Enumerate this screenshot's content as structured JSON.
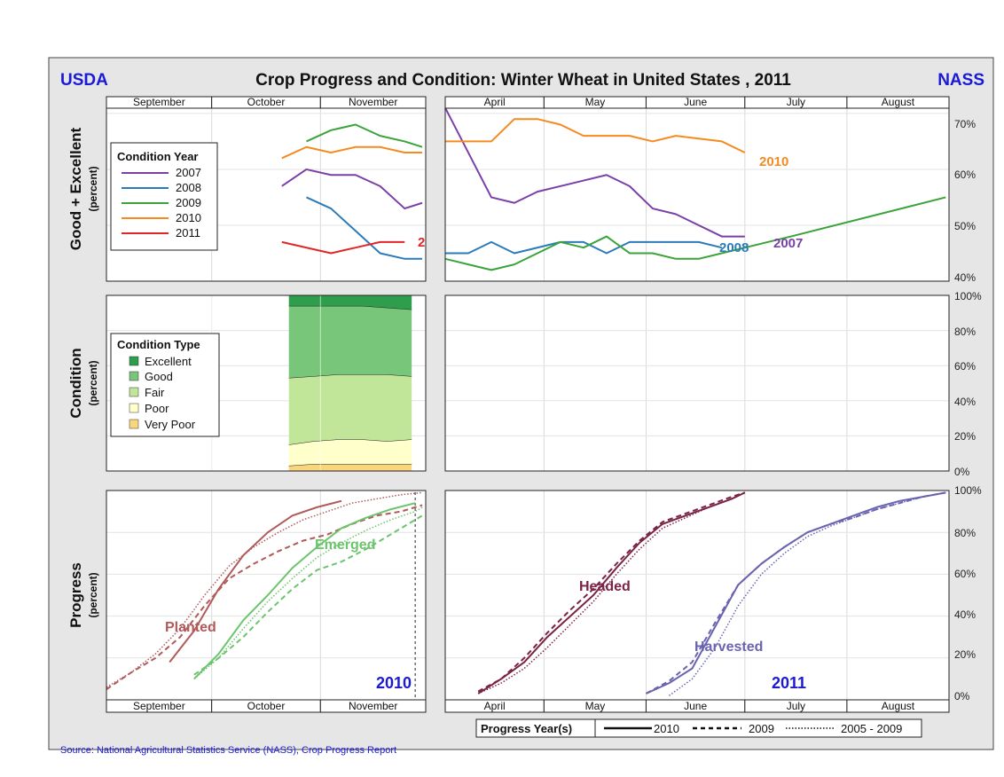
{
  "header": {
    "left": "USDA",
    "title": "Crop Progress and Condition: Winter Wheat in United States , 2011",
    "right": "NASS"
  },
  "colors": {
    "background": "#e6e6e6",
    "agency_blue": "#1a1ad6",
    "y2007": "#7b3fa8",
    "y2008": "#2b7bb9",
    "y2009": "#3aa33a",
    "y2010": "#f58a1f",
    "y2011": "#e02626",
    "excellent": "#2e9e4d",
    "good": "#78c679",
    "fair": "#c2e699",
    "poor": "#ffffcc",
    "very_poor": "#f9d67c",
    "planted": "#b05a5a",
    "emerged": "#6cc46c",
    "headed": "#7b2346",
    "harvested": "#6a64b0"
  },
  "months": {
    "fall": [
      "September",
      "October",
      "November"
    ],
    "spring": [
      "April",
      "May",
      "June",
      "July",
      "August"
    ]
  },
  "row_labels": {
    "row1": {
      "main": "Good + Excellent",
      "sub": "(percent)"
    },
    "row2": {
      "main": "Condition",
      "sub": "(percent)"
    },
    "row3": {
      "main": "Progress",
      "sub": "(percent)"
    }
  },
  "y_ticks": {
    "ge": [
      "70%",
      "60%",
      "50%",
      "40%"
    ],
    "pct": [
      "100%",
      "80%",
      "60%",
      "40%",
      "20%",
      "0%"
    ]
  },
  "legend_condition_year": {
    "title": "Condition Year",
    "items": [
      "2007",
      "2008",
      "2009",
      "2010",
      "2011"
    ]
  },
  "legend_condition_type": {
    "title": "Condition Type",
    "items": [
      "Excellent",
      "Good",
      "Fair",
      "Poor",
      "Very Poor"
    ]
  },
  "legend_progress_year": {
    "title": "Progress Year(s)",
    "items": [
      "2010",
      "2009",
      "2005 - 2009"
    ]
  },
  "labels": {
    "ge_right_2010": "2010",
    "ge_right_2008": "2008",
    "ge_right_2007": "2007",
    "ge_left_2011": "2",
    "planted": "Planted",
    "emerged": "Emerged",
    "headed": "Headed",
    "harvested": "Harvested",
    "year_left": "2010",
    "year_right": "2011"
  },
  "footer": {
    "source": "Source: National Agricultural Statistics Service (NASS), Crop Progress Report"
  },
  "chart_data": [
    {
      "type": "line",
      "panel": "Good + Excellent, fall",
      "ylabel": "Good + Excellent (percent)",
      "ylim": [
        40,
        73
      ],
      "x_range": [
        "Sep 1",
        "Nov 30"
      ],
      "series": [
        {
          "name": "2007",
          "x": [
            "Oct 21",
            "Oct 28",
            "Nov 4",
            "Nov 11",
            "Nov 18",
            "Nov 25",
            "Nov 30"
          ],
          "values": [
            57,
            60,
            59,
            59,
            57,
            53,
            54
          ]
        },
        {
          "name": "2008",
          "x": [
            "Oct 28",
            "Nov 4",
            "Nov 11",
            "Nov 18",
            "Nov 25",
            "Nov 30"
          ],
          "values": [
            55,
            53,
            49,
            45,
            44,
            44
          ]
        },
        {
          "name": "2009",
          "x": [
            "Oct 28",
            "Nov 4",
            "Nov 11",
            "Nov 18",
            "Nov 25",
            "Nov 30"
          ],
          "values": [
            65,
            67,
            68,
            66,
            65,
            64
          ]
        },
        {
          "name": "2010",
          "x": [
            "Oct 21",
            "Oct 28",
            "Nov 4",
            "Nov 11",
            "Nov 18",
            "Nov 25",
            "Nov 30"
          ],
          "values": [
            62,
            64,
            63,
            64,
            64,
            63,
            63
          ]
        },
        {
          "name": "2011",
          "x": [
            "Oct 21",
            "Nov 4",
            "Nov 11",
            "Nov 18",
            "Nov 25"
          ],
          "values": [
            47,
            45,
            46,
            47,
            47
          ]
        }
      ]
    },
    {
      "type": "line",
      "panel": "Good + Excellent, spring",
      "ylim": [
        40,
        73
      ],
      "x_range": [
        "Apr 1",
        "Aug 31"
      ],
      "series": [
        {
          "name": "2007",
          "x": [
            "Apr 1",
            "Apr 15",
            "Apr 22",
            "Apr 29",
            "May 13",
            "May 20",
            "May 27",
            "Jun 3",
            "Jun 10",
            "Jun 24",
            "Jul 1"
          ],
          "values": [
            71,
            55,
            54,
            56,
            58,
            59,
            57,
            53,
            52,
            48,
            48
          ]
        },
        {
          "name": "2008",
          "x": [
            "Apr 1",
            "Apr 8",
            "Apr 15",
            "Apr 22",
            "May 6",
            "May 13",
            "May 20",
            "May 27",
            "Jun 3",
            "Jun 10",
            "Jun 17",
            "Jun 24"
          ],
          "values": [
            45,
            45,
            47,
            45,
            47,
            47,
            45,
            47,
            47,
            47,
            47,
            46
          ]
        },
        {
          "name": "2009",
          "x": [
            "Apr 1",
            "Apr 8",
            "Apr 15",
            "Apr 22",
            "Apr 29",
            "May 6",
            "May 13",
            "May 20",
            "May 27",
            "Jun 3",
            "Jun 10",
            "Jun 17",
            "Jun 24",
            "Jul 1",
            "Jul 15",
            "Aug 31"
          ],
          "values": [
            44,
            43,
            42,
            43,
            45,
            47,
            46,
            48,
            45,
            45,
            44,
            44,
            45,
            46,
            48,
            55
          ]
        },
        {
          "name": "2010",
          "x": [
            "Apr 1",
            "Apr 8",
            "Apr 15",
            "Apr 22",
            "Apr 29",
            "May 6",
            "May 13",
            "May 20",
            "May 27",
            "Jun 3",
            "Jun 10",
            "Jun 17",
            "Jun 24",
            "Jul 1"
          ],
          "values": [
            65,
            65,
            65,
            69,
            69,
            68,
            66,
            66,
            66,
            65,
            66,
            65.5,
            65,
            63
          ]
        }
      ]
    },
    {
      "type": "area",
      "panel": "Condition, fall",
      "ylabel": "Condition (percent)",
      "ylim": [
        0,
        100
      ],
      "x": [
        "Oct 23",
        "Oct 30",
        "Nov 6",
        "Nov 13",
        "Nov 20",
        "Nov 27"
      ],
      "series": [
        {
          "name": "Very Poor",
          "values": [
            3,
            4,
            4,
            4,
            4,
            4
          ]
        },
        {
          "name": "Poor",
          "values": [
            12,
            13,
            14,
            14,
            13,
            14
          ]
        },
        {
          "name": "Fair",
          "values": [
            38,
            37,
            37,
            37,
            38,
            36
          ]
        },
        {
          "name": "Good",
          "values": [
            41,
            40,
            39,
            39,
            38,
            38
          ]
        },
        {
          "name": "Excellent",
          "values": [
            6,
            6,
            6,
            6,
            7,
            8
          ]
        }
      ]
    },
    {
      "type": "line",
      "panel": "Progress, fall 2010",
      "ylabel": "Progress (percent)",
      "ylim": [
        0,
        100
      ],
      "series": [
        {
          "name": "Planted 2010",
          "x": [
            "Sep 19",
            "Sep 26",
            "Oct 3",
            "Oct 10",
            "Oct 17",
            "Oct 24",
            "Oct 31",
            "Nov 7"
          ],
          "values": [
            18,
            33,
            53,
            69,
            80,
            88,
            92,
            95
          ]
        },
        {
          "name": "Planted 2009",
          "x": [
            "Sep 1",
            "Sep 8",
            "Sep 15",
            "Sep 22",
            "Sep 29",
            "Oct 6",
            "Oct 13",
            "Oct 20",
            "Oct 27",
            "Nov 3",
            "Nov 10",
            "Nov 17",
            "Nov 24",
            "Nov 30"
          ],
          "values": [
            5,
            13,
            20,
            30,
            45,
            58,
            65,
            71,
            76,
            79,
            84,
            88,
            90,
            93
          ]
        },
        {
          "name": "Planted 2005 - 2009",
          "x": [
            "Sep 1",
            "Sep 8",
            "Sep 15",
            "Sep 22",
            "Sep 29",
            "Oct 6",
            "Oct 13",
            "Oct 20",
            "Oct 27",
            "Nov 3",
            "Nov 10",
            "Nov 17",
            "Nov 24",
            "Nov 30"
          ],
          "values": [
            6,
            13,
            22,
            34,
            50,
            64,
            73,
            80,
            86,
            90,
            94,
            96,
            98,
            99
          ]
        },
        {
          "name": "Emerged 2010",
          "x": [
            "Sep 26",
            "Oct 3",
            "Oct 10",
            "Oct 17",
            "Oct 24",
            "Oct 31",
            "Nov 7",
            "Nov 14",
            "Nov 21",
            "Nov 28"
          ],
          "values": [
            10,
            22,
            38,
            50,
            63,
            73,
            82,
            87,
            91,
            94
          ]
        },
        {
          "name": "Emerged 2009",
          "x": [
            "Sep 26",
            "Oct 3",
            "Oct 10",
            "Oct 17",
            "Oct 24",
            "Oct 31",
            "Nov 7",
            "Nov 14",
            "Nov 21",
            "Nov 28",
            "Nov 30"
          ],
          "values": [
            12,
            20,
            30,
            42,
            53,
            62,
            66,
            72,
            79,
            86,
            88
          ]
        },
        {
          "name": "Emerged 2005 - 2009",
          "x": [
            "Sep 26",
            "Oct 3",
            "Oct 10",
            "Oct 17",
            "Oct 24",
            "Oct 31",
            "Nov 7",
            "Nov 14",
            "Nov 21",
            "Nov 28",
            "Nov 30"
          ],
          "values": [
            10,
            20,
            34,
            47,
            58,
            68,
            75,
            81,
            86,
            90,
            92
          ]
        }
      ]
    },
    {
      "type": "line",
      "panel": "Progress, spring 2011",
      "ylim": [
        0,
        100
      ],
      "series": [
        {
          "name": "Headed 2010",
          "x": [
            "Apr 11",
            "Apr 18",
            "Apr 25",
            "May 2",
            "May 9",
            "May 16",
            "May 23",
            "May 30",
            "Jun 6",
            "Jun 13",
            "Jun 20",
            "Jun 27",
            "Jul 1"
          ],
          "values": [
            3,
            10,
            18,
            30,
            40,
            50,
            63,
            75,
            84,
            88,
            92,
            96,
            99
          ]
        },
        {
          "name": "Headed 2009",
          "x": [
            "Apr 11",
            "Apr 18",
            "Apr 25",
            "May 2",
            "May 9",
            "May 16",
            "May 23",
            "May 30",
            "Jun 6",
            "Jun 13",
            "Jun 20",
            "Jun 27",
            "Jul 1"
          ],
          "values": [
            4,
            10,
            20,
            32,
            43,
            53,
            65,
            76,
            85,
            89,
            93,
            97,
            99
          ]
        },
        {
          "name": "Headed 2005 - 2009",
          "x": [
            "Apr 11",
            "Apr 18",
            "Apr 25",
            "May 2",
            "May 9",
            "May 16",
            "May 23",
            "May 30",
            "Jun 6",
            "Jun 13",
            "Jun 20",
            "Jun 27",
            "Jul 1"
          ],
          "values": [
            3,
            8,
            15,
            25,
            36,
            47,
            60,
            72,
            82,
            87,
            92,
            96,
            99
          ]
        },
        {
          "name": "Harvested 2010",
          "x": [
            "Jun 1",
            "Jun 8",
            "Jun 15",
            "Jun 22",
            "Jun 29",
            "Jul 6",
            "Jul 13",
            "Jul 20",
            "Jul 27",
            "Aug 3",
            "Aug 10",
            "Aug 17",
            "Aug 24",
            "Aug 31"
          ],
          "values": [
            3,
            8,
            15,
            35,
            55,
            65,
            73,
            80,
            84,
            88,
            92,
            95,
            97,
            99
          ]
        },
        {
          "name": "Harvested 2009",
          "x": [
            "Jun 1",
            "Jun 8",
            "Jun 15",
            "Jun 22",
            "Jun 29",
            "Jul 6",
            "Jul 13",
            "Jul 20",
            "Jul 27",
            "Aug 3",
            "Aug 10",
            "Aug 17",
            "Aug 24",
            "Aug 31"
          ],
          "values": [
            3,
            9,
            18,
            37,
            55,
            65,
            73,
            80,
            84,
            87,
            91,
            94,
            97,
            99
          ]
        },
        {
          "name": "Harvested 2005 - 2009",
          "x": [
            "Jun 8",
            "Jun 15",
            "Jun 22",
            "Jun 29",
            "Jul 6",
            "Jul 13",
            "Jul 20",
            "Jul 27",
            "Aug 3",
            "Aug 10",
            "Aug 17",
            "Aug 24",
            "Aug 31"
          ],
          "values": [
            2,
            10,
            25,
            45,
            60,
            70,
            78,
            83,
            87,
            91,
            94,
            97,
            99
          ]
        }
      ]
    }
  ]
}
